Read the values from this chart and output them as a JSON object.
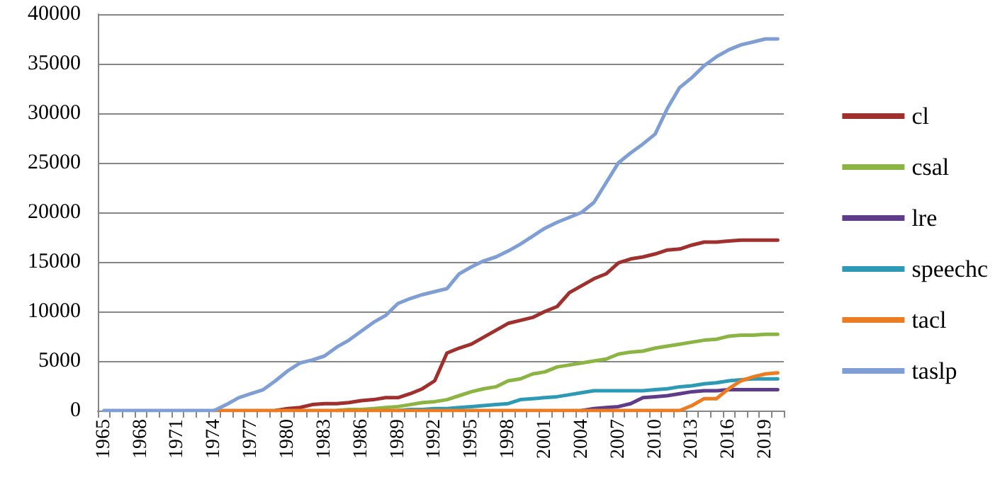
{
  "chart_data": {
    "type": "line",
    "categories": [
      "1965",
      null,
      null,
      "1968",
      null,
      null,
      "1971",
      null,
      null,
      "1974",
      null,
      null,
      "1977",
      null,
      null,
      "1980",
      null,
      null,
      "1983",
      null,
      null,
      "1986",
      null,
      null,
      "1989",
      null,
      null,
      "1992",
      null,
      null,
      "1995",
      null,
      null,
      "1998",
      null,
      null,
      "2001",
      null,
      null,
      "2004",
      null,
      null,
      "2007",
      null,
      null,
      "2010",
      null,
      null,
      "2013",
      null,
      null,
      "2016",
      null,
      null,
      "2019",
      null
    ],
    "series": [
      {
        "name": "cl",
        "color": "#a0302d",
        "values": [
          null,
          null,
          null,
          null,
          null,
          null,
          null,
          null,
          null,
          null,
          null,
          null,
          null,
          null,
          0,
          200,
          300,
          600,
          700,
          700,
          800,
          1000,
          1100,
          1300,
          1300,
          1700,
          2200,
          3000,
          5800,
          6300,
          6700,
          7400,
          8100,
          8800,
          9100,
          9400,
          10000,
          10500,
          11900,
          12600,
          13300,
          13800,
          14900,
          15300,
          15500,
          15800,
          16200,
          16300,
          16700,
          17000,
          17000,
          17100,
          17200,
          17200,
          17200,
          17200
        ]
      },
      {
        "name": "csal",
        "color": "#8cb443",
        "values": [
          null,
          null,
          null,
          null,
          null,
          null,
          null,
          null,
          null,
          null,
          null,
          null,
          null,
          null,
          null,
          null,
          null,
          null,
          null,
          0,
          100,
          100,
          200,
          300,
          400,
          600,
          800,
          900,
          1100,
          1500,
          1900,
          2200,
          2400,
          3000,
          3200,
          3700,
          3900,
          4400,
          4600,
          4800,
          5000,
          5200,
          5700,
          5900,
          6000,
          6300,
          6500,
          6700,
          6900,
          7100,
          7200,
          7500,
          7600,
          7600,
          7700,
          7700
        ]
      },
      {
        "name": "lre",
        "color": "#5f3c8a",
        "values": [
          null,
          null,
          null,
          null,
          null,
          null,
          null,
          null,
          null,
          null,
          null,
          null,
          null,
          null,
          null,
          null,
          null,
          null,
          null,
          null,
          null,
          null,
          null,
          null,
          null,
          null,
          null,
          null,
          null,
          null,
          null,
          null,
          null,
          null,
          null,
          null,
          null,
          null,
          null,
          0,
          200,
          300,
          400,
          700,
          1300,
          1400,
          1500,
          1700,
          1900,
          2000,
          2000,
          2100,
          2100,
          2100,
          2100,
          2100
        ]
      },
      {
        "name": "speechc",
        "color": "#2c9ab5",
        "values": [
          null,
          null,
          null,
          null,
          null,
          null,
          null,
          null,
          null,
          null,
          null,
          null,
          null,
          null,
          null,
          null,
          null,
          null,
          null,
          null,
          null,
          null,
          null,
          null,
          0,
          100,
          100,
          200,
          200,
          300,
          400,
          500,
          600,
          700,
          1100,
          1200,
          1300,
          1400,
          1600,
          1800,
          2000,
          2000,
          2000,
          2000,
          2000,
          2100,
          2200,
          2400,
          2500,
          2700,
          2800,
          3000,
          3100,
          3200,
          3200,
          3200
        ]
      },
      {
        "name": "tacl",
        "color": "#ec7c22",
        "values": [
          null,
          null,
          null,
          null,
          null,
          null,
          null,
          null,
          null,
          0,
          0,
          0,
          0,
          0,
          0,
          0,
          0,
          0,
          0,
          0,
          0,
          0,
          0,
          0,
          0,
          0,
          0,
          0,
          0,
          0,
          0,
          0,
          0,
          0,
          0,
          0,
          0,
          0,
          0,
          0,
          0,
          0,
          0,
          0,
          0,
          0,
          0,
          0,
          500,
          1200,
          1200,
          2200,
          3000,
          3400,
          3700,
          3800
        ]
      },
      {
        "name": "taslp",
        "color": "#7f9fd4",
        "values": [
          0,
          0,
          0,
          0,
          0,
          0,
          0,
          0,
          0,
          0,
          600,
          1300,
          1700,
          2100,
          3000,
          4000,
          4800,
          5100,
          5500,
          6400,
          7100,
          8000,
          8900,
          9600,
          10800,
          11300,
          11700,
          12000,
          12300,
          13800,
          14500,
          15100,
          15500,
          16100,
          16800,
          17600,
          18400,
          19000,
          19500,
          20000,
          21000,
          23000,
          25000,
          26000,
          26900,
          27900,
          30500,
          32600,
          33600,
          34800,
          35700,
          36400,
          36900,
          37200,
          37500,
          37500
        ]
      }
    ],
    "ylim": [
      0,
      40000
    ],
    "yticks": [
      0,
      5000,
      10000,
      15000,
      20000,
      25000,
      30000,
      35000,
      40000
    ],
    "grid": "y",
    "legend": "right",
    "marker": "none",
    "line_style": "solid"
  }
}
